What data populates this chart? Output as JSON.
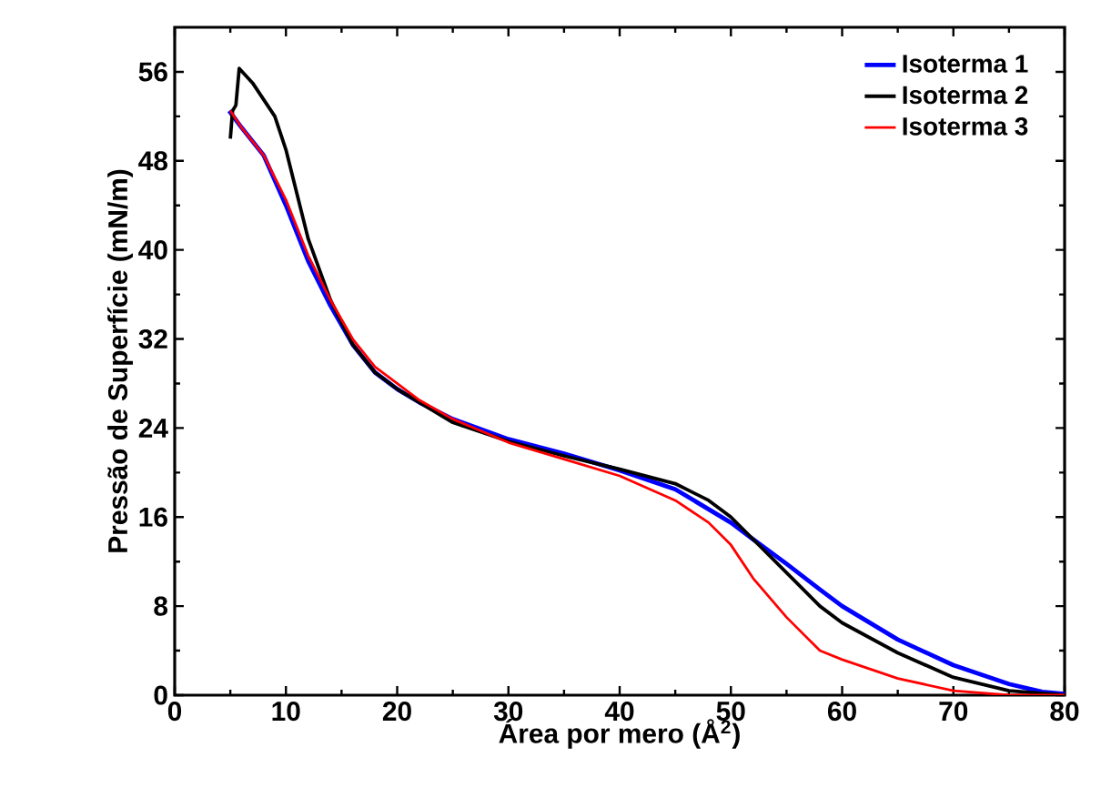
{
  "chart_data": {
    "type": "line",
    "xlabel": "Área por mero (Å$^{2}$)",
    "ylabel": "Pressão de Superfície (mN/m)",
    "xlim": [
      0,
      80
    ],
    "ylim": [
      0,
      60
    ],
    "xticks": [
      0,
      10,
      20,
      30,
      40,
      50,
      60,
      70,
      80
    ],
    "yticks": [
      0,
      8,
      16,
      24,
      32,
      40,
      48,
      56
    ],
    "legend": "top right",
    "grid": false,
    "marker": "none",
    "line_style": "solid",
    "series": [
      {
        "name": "Isoterma 1",
        "color": "#0000ff",
        "x": [
          4.9,
          6,
          8,
          10,
          12,
          14,
          16,
          18,
          20,
          22,
          25,
          30,
          35,
          40,
          45,
          50,
          52,
          55,
          58,
          60,
          65,
          70,
          75,
          78,
          80
        ],
        "values": [
          52.5,
          51,
          48.5,
          44,
          39,
          35,
          31.5,
          29,
          27.5,
          26.3,
          24.8,
          23,
          21.7,
          20.2,
          18.5,
          15.5,
          14,
          11.8,
          9.5,
          8,
          5,
          2.7,
          1,
          0.3,
          0.1
        ]
      },
      {
        "name": "Isoterma 2",
        "color": "#000000",
        "x": [
          5,
          5.2,
          5.5,
          5.8,
          7,
          8,
          9,
          10,
          11,
          12,
          14,
          16,
          18,
          20,
          25,
          30,
          35,
          40,
          45,
          48,
          50,
          52,
          55,
          58,
          60,
          65,
          70,
          75,
          80
        ],
        "values": [
          50,
          52.5,
          53,
          56.3,
          55,
          53.5,
          52,
          49,
          45,
          41,
          35.5,
          31.5,
          29,
          27.5,
          24.5,
          22.8,
          21.5,
          20.3,
          19,
          17.5,
          16,
          14,
          11,
          8,
          6.5,
          3.8,
          1.6,
          0.4,
          0
        ]
      },
      {
        "name": "Isoterma 3",
        "color": "#ff0000",
        "x": [
          5,
          6,
          8,
          10,
          12,
          14,
          16,
          18,
          20,
          22,
          25,
          30,
          35,
          40,
          45,
          48,
          50,
          52,
          55,
          58,
          60,
          65,
          70,
          75,
          80
        ],
        "values": [
          52.5,
          51,
          48.5,
          44.5,
          39.5,
          35.5,
          32,
          29.5,
          28,
          26.5,
          24.8,
          22.7,
          21.2,
          19.7,
          17.5,
          15.5,
          13.5,
          10.5,
          7,
          4,
          3.2,
          1.5,
          0.4,
          0,
          0
        ]
      }
    ]
  }
}
